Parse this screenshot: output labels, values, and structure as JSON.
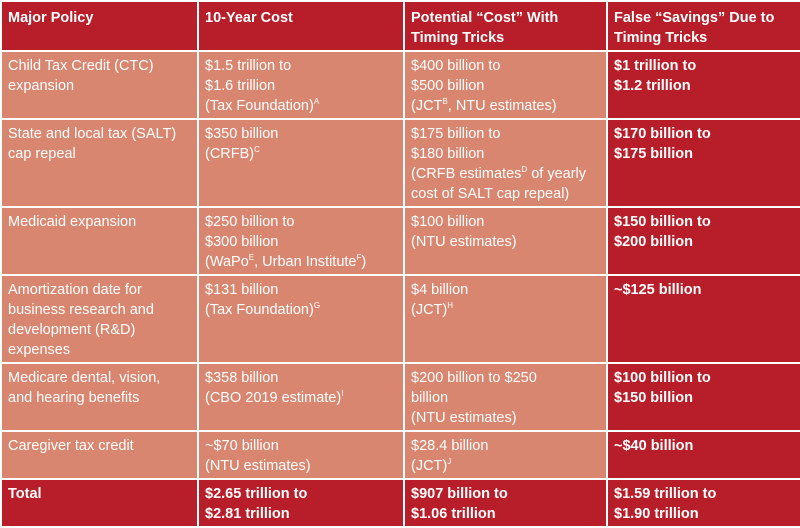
{
  "colors": {
    "header_red": "#b81e29",
    "body_salmon": "#d98670",
    "text": "#ffffff"
  },
  "headers": [
    "Major Policy",
    "10-Year Cost",
    "Potential “Cost” With Timing Tricks",
    "False “Savings” Due to Timing Tricks"
  ],
  "rows": [
    {
      "policy": [
        "Child Tax Credit (CTC)",
        "expansion"
      ],
      "cost": [
        {
          "t": "$1.5 trillion to"
        },
        {
          "t": "$1.6 trillion"
        },
        {
          "t": "(Tax Foundation)",
          "sup": "A"
        }
      ],
      "timing": [
        {
          "t": "$400 billion to"
        },
        {
          "t": "$500 billion"
        },
        {
          "t": "(JCT",
          "sup": "B",
          "after": ", NTU estimates)"
        }
      ],
      "savings": [
        "$1 trillion to",
        "$1.2 trillion"
      ]
    },
    {
      "policy": [
        "State and local tax (SALT)",
        "cap repeal"
      ],
      "cost": [
        {
          "t": "$350 billion"
        },
        {
          "t": "(CRFB)",
          "sup": "C"
        }
      ],
      "timing": [
        {
          "t": "$175 billion to"
        },
        {
          "t": "$180 billion"
        },
        {
          "t": "(CRFB estimates",
          "sup": "D",
          "after": " of yearly"
        },
        {
          "t": "cost of SALT cap repeal)"
        }
      ],
      "savings": [
        "$170 billion to",
        "$175 billion"
      ]
    },
    {
      "policy": [
        "Medicaid expansion"
      ],
      "cost": [
        {
          "t": "$250 billion to"
        },
        {
          "t": "$300 billion"
        },
        {
          "t": "(WaPo",
          "sup": "E",
          "after": ", Urban Institute",
          "sup2": "F",
          "after2": ")"
        }
      ],
      "timing": [
        {
          "t": "$100 billion"
        },
        {
          "t": "(NTU estimates)"
        }
      ],
      "savings": [
        "$150 billion to",
        "$200 billion"
      ]
    },
    {
      "policy": [
        "Amortization date for",
        "business research and",
        "development (R&D)",
        "expenses"
      ],
      "cost": [
        {
          "t": "$131 billion"
        },
        {
          "t": "(Tax Foundation)",
          "sup": "G"
        }
      ],
      "timing": [
        {
          "t": "$4 billion"
        },
        {
          "t": "(JCT)",
          "sup": "H"
        }
      ],
      "savings": [
        "~$125 billion"
      ]
    },
    {
      "policy": [
        "Medicare dental, vision,",
        "and hearing benefits"
      ],
      "cost": [
        {
          "t": "$358 billion"
        },
        {
          "t": "(CBO 2019 estimate)",
          "sup": "I"
        }
      ],
      "timing": [
        {
          "t": "$200 billion to $250"
        },
        {
          "t": "billion"
        },
        {
          "t": "(NTU estimates)"
        }
      ],
      "savings": [
        "$100 billion to",
        "$150 billion"
      ]
    },
    {
      "policy": [
        "Caregiver tax credit"
      ],
      "cost": [
        {
          "t": "~$70 billion"
        },
        {
          "t": "(NTU estimates)"
        }
      ],
      "timing": [
        {
          "t": "$28.4 billion"
        },
        {
          "t": "(JCT)",
          "sup": "J"
        }
      ],
      "savings": [
        "~$40 billion"
      ]
    }
  ],
  "total": {
    "label": "Total",
    "cost": [
      "$2.65 trillion to",
      "$2.81 trillion"
    ],
    "timing": [
      "$907 billion to",
      "$1.06 trillion"
    ],
    "savings": [
      "$1.59 trillion to",
      "$1.90 trillion"
    ]
  }
}
